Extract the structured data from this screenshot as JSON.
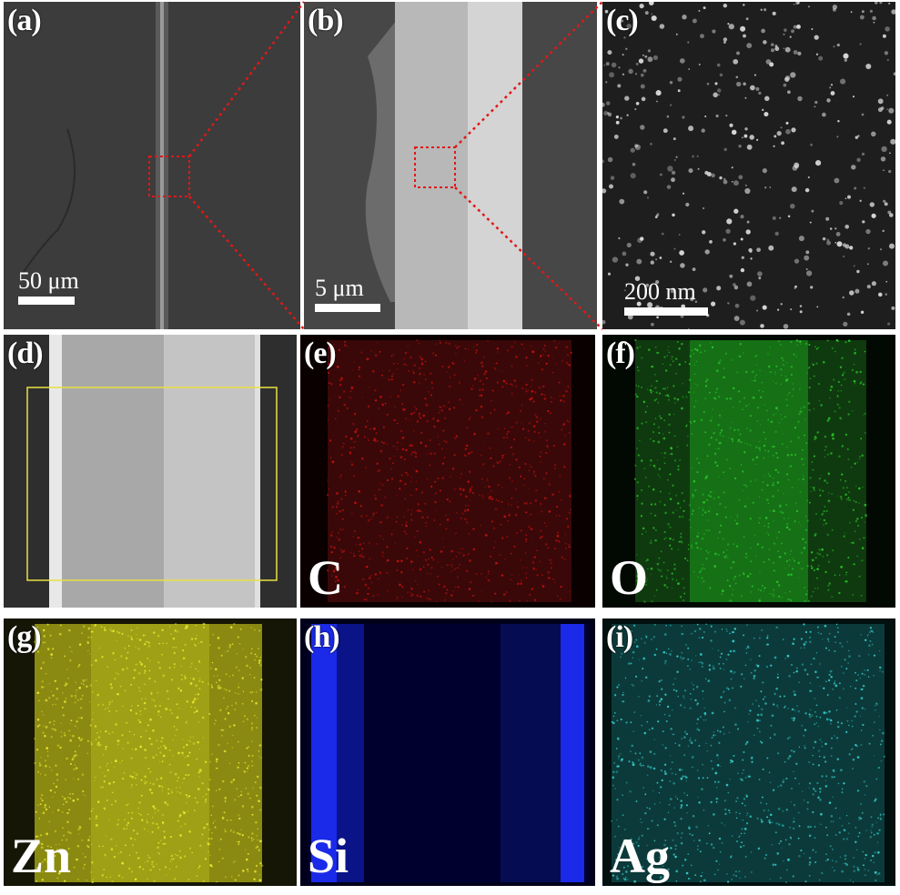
{
  "panels": [
    {
      "id": "a",
      "label": "(a)",
      "scale": "50 μm"
    },
    {
      "id": "b",
      "label": "(b)",
      "scale": "5 μm"
    },
    {
      "id": "c",
      "label": "(c)",
      "scale": "200 nm"
    },
    {
      "id": "d",
      "label": "(d)"
    },
    {
      "id": "e",
      "label": "(e)",
      "element": "C",
      "color": "#c01010"
    },
    {
      "id": "f",
      "label": "(f)",
      "element": "O",
      "color": "#20b020"
    },
    {
      "id": "g",
      "label": "(g)",
      "element": "Zn",
      "color": "#d8d820"
    },
    {
      "id": "h",
      "label": "(h)",
      "element": "Si",
      "color": "#1020e0"
    },
    {
      "id": "i",
      "label": "(i)",
      "element": "Ag",
      "color": "#30c8c8"
    }
  ],
  "colors": {
    "zoom_box": "#e01818",
    "roi_box": "#e8e040"
  }
}
